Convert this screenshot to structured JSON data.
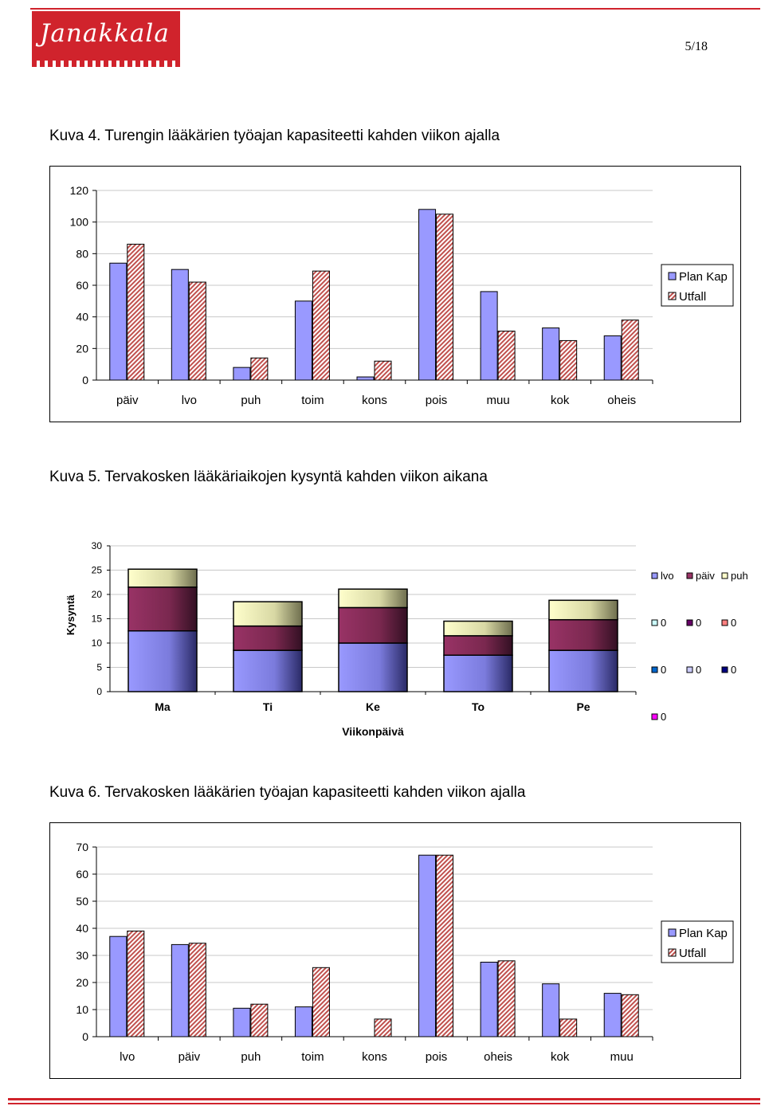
{
  "header": {
    "logo_text": "Janakkala",
    "page_number": "5/18",
    "brand_color": "#d0232c"
  },
  "captions": {
    "c4": "Kuva 4. Turengin lääkärien työajan kapasiteetti kahden viikon ajalla",
    "c5": "Kuva 5. Tervakosken lääkäriaikojen kysyntä kahden viikon aikana",
    "c6": "Kuva 6. Tervakosken lääkärien työajan kapasiteetti kahden viikon ajalla"
  },
  "chart_data": [
    {
      "type": "bar",
      "categories": [
        "päiv",
        "lvo",
        "puh",
        "toim",
        "kons",
        "pois",
        "muu",
        "kok",
        "oheis"
      ],
      "series": [
        {
          "name": "Plan Kap",
          "values": [
            74,
            70,
            8,
            50,
            2,
            108,
            56,
            33,
            28
          ],
          "color": "#9999ff"
        },
        {
          "name": "Utfall",
          "values": [
            86,
            62,
            14,
            69,
            12,
            105,
            31,
            25,
            38
          ],
          "color": "#c0504d"
        }
      ],
      "ylim": [
        0,
        120
      ],
      "yticks": [
        0,
        20,
        40,
        60,
        80,
        100,
        120
      ],
      "grid": true,
      "legend": "right"
    },
    {
      "type": "bar",
      "stacked": true,
      "categories": [
        "Ma",
        "Ti",
        "Ke",
        "To",
        "Pe"
      ],
      "series": [
        {
          "name": "lvo",
          "values": [
            12.5,
            8.5,
            10,
            7.5,
            8.5
          ],
          "color": "#9999ff"
        },
        {
          "name": "päiv",
          "values": [
            9,
            5,
            7.3,
            4,
            6.3
          ],
          "color": "#993366"
        },
        {
          "name": "puh",
          "values": [
            3.7,
            5,
            3.8,
            3,
            4
          ],
          "color": "#ffffcc"
        }
      ],
      "extra_legend": [
        {
          "label": "0",
          "color": "#ccffff"
        },
        {
          "label": "0",
          "color": "#660066"
        },
        {
          "label": "0",
          "color": "#ff8080"
        },
        {
          "label": "0",
          "color": "#0066cc"
        },
        {
          "label": "0",
          "color": "#ccccff"
        },
        {
          "label": "0",
          "color": "#000080"
        },
        {
          "label": "0",
          "color": "#ff00ff"
        }
      ],
      "xlabel": "Viikonpäivä",
      "ylabel": "Kysyntä",
      "ylim": [
        0,
        30
      ],
      "yticks": [
        0,
        5,
        10,
        15,
        20,
        25,
        30
      ],
      "grid": true,
      "legend": "right"
    },
    {
      "type": "bar",
      "categories": [
        "lvo",
        "päiv",
        "puh",
        "toim",
        "kons",
        "pois",
        "oheis",
        "kok",
        "muu"
      ],
      "series": [
        {
          "name": "Plan Kap",
          "values": [
            37,
            34,
            10.5,
            11,
            0,
            67,
            27.5,
            19.5,
            16
          ],
          "color": "#9999ff"
        },
        {
          "name": "Utfall",
          "values": [
            39,
            34.5,
            12,
            25.5,
            6.5,
            67,
            28,
            6.5,
            15.5
          ],
          "color": "#c0504d"
        }
      ],
      "ylim": [
        0,
        70
      ],
      "yticks": [
        0,
        10,
        20,
        30,
        40,
        50,
        60,
        70
      ],
      "grid": true,
      "legend": "right"
    }
  ]
}
